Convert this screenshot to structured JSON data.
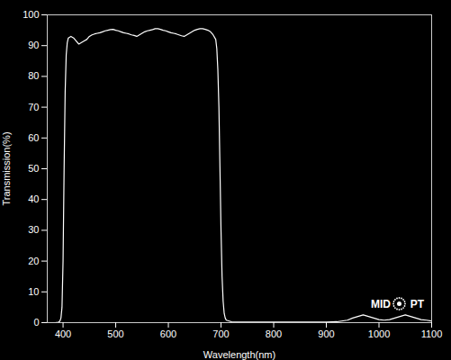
{
  "chart_data": {
    "type": "line",
    "xlabel": "Wavelength(nm)",
    "ylabel": "Transmission(%)",
    "color": "#ffffff",
    "xlim": [
      370,
      1100
    ],
    "ylim": [
      0,
      100
    ],
    "xticks": [
      400,
      500,
      600,
      700,
      800,
      900,
      1000,
      1100
    ],
    "yticks": [
      0,
      10,
      20,
      30,
      40,
      50,
      60,
      70,
      80,
      90,
      100
    ],
    "annotations": [
      "MID",
      "PT"
    ],
    "x": [
      370,
      380,
      385,
      390,
      392,
      394,
      396,
      398,
      400,
      402,
      404,
      406,
      408,
      410,
      415,
      420,
      425,
      430,
      435,
      440,
      445,
      450,
      455,
      460,
      465,
      470,
      475,
      480,
      485,
      490,
      495,
      500,
      505,
      510,
      515,
      520,
      525,
      530,
      535,
      540,
      545,
      550,
      555,
      560,
      565,
      570,
      575,
      580,
      585,
      590,
      595,
      600,
      605,
      610,
      615,
      620,
      625,
      630,
      635,
      640,
      645,
      650,
      655,
      660,
      665,
      670,
      675,
      680,
      685,
      690,
      692,
      694,
      696,
      698,
      700,
      702,
      704,
      706,
      708,
      710,
      720,
      730,
      740,
      750,
      760,
      770,
      780,
      790,
      800,
      850,
      900,
      920,
      940,
      950,
      960,
      970,
      980,
      990,
      1000,
      1010,
      1020,
      1030,
      1040,
      1050,
      1060,
      1070,
      1080,
      1090,
      1100
    ],
    "values": [
      0.0,
      0.0,
      0.0,
      0.1,
      0.2,
      0.5,
      1.5,
      5.0,
      20.0,
      50.0,
      75.0,
      87.0,
      91.0,
      92.5,
      93.0,
      92.5,
      91.5,
      90.5,
      91.0,
      91.5,
      92.0,
      93.0,
      93.5,
      93.8,
      94.0,
      94.2,
      94.5,
      94.8,
      95.0,
      95.2,
      95.3,
      95.0,
      94.8,
      94.5,
      94.2,
      94.0,
      93.8,
      93.5,
      93.3,
      93.0,
      93.5,
      94.0,
      94.5,
      94.8,
      95.0,
      95.2,
      95.5,
      95.5,
      95.3,
      95.0,
      94.8,
      94.5,
      94.2,
      94.0,
      93.8,
      93.5,
      93.2,
      93.0,
      93.5,
      94.0,
      94.5,
      95.0,
      95.3,
      95.5,
      95.5,
      95.3,
      95.0,
      94.5,
      93.5,
      92.0,
      89.0,
      82.0,
      70.0,
      50.0,
      30.0,
      15.0,
      7.0,
      3.0,
      1.5,
      0.8,
      0.3,
      0.2,
      0.2,
      0.2,
      0.2,
      0.2,
      0.2,
      0.2,
      0.2,
      0.2,
      0.2,
      0.3,
      0.8,
      1.5,
      2.0,
      2.5,
      2.0,
      1.5,
      1.0,
      0.8,
      1.0,
      1.5,
      2.0,
      2.5,
      2.0,
      1.5,
      1.0,
      0.8,
      0.5
    ]
  }
}
